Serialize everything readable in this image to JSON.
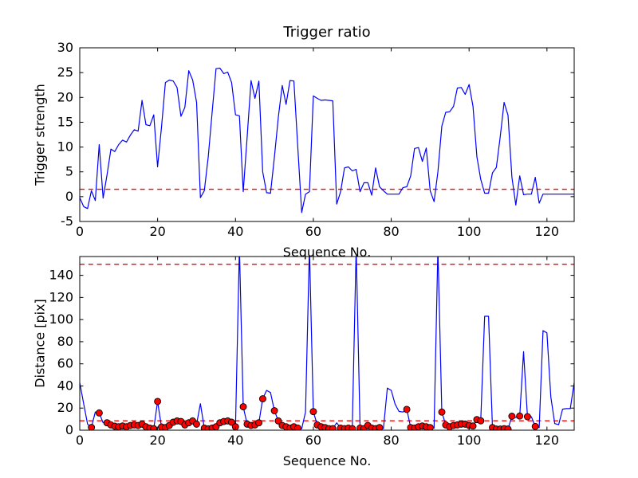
{
  "figure": {
    "background": "#ffffff",
    "axes_color": "#000000",
    "tick_label_color": "#000000"
  },
  "chart_data": [
    {
      "id": "trigger-strength",
      "type": "line",
      "title": "Trigger ratio",
      "xlabel": "Sequence No.",
      "ylabel": "Trigger strength",
      "x_start": 0,
      "x_step": 1,
      "xlim": [
        0,
        127
      ],
      "ylim": [
        -5,
        30
      ],
      "xticks": [
        0,
        20,
        40,
        60,
        80,
        100,
        120
      ],
      "yticks": [
        -5,
        0,
        5,
        10,
        15,
        20,
        25,
        30
      ],
      "grid": false,
      "legend": "none",
      "line_color": "#0000ff",
      "threshold_lines": [
        {
          "y": 1.5,
          "color": "#ff0000",
          "style": "dashed"
        }
      ],
      "values": [
        -0.2,
        -2.0,
        -2.4,
        1.2,
        -0.8,
        10.5,
        -0.3,
        4.4,
        9.6,
        9.1,
        10.5,
        11.4,
        11.0,
        12.4,
        13.5,
        13.2,
        19.4,
        14.5,
        14.3,
        16.5,
        6.0,
        14.0,
        23.0,
        23.5,
        23.3,
        22.0,
        16.2,
        18.0,
        25.4,
        23.5,
        19.0,
        -0.2,
        1.2,
        8.0,
        17.0,
        25.8,
        25.9,
        24.8,
        25.1,
        23.0,
        16.5,
        16.3,
        1.0,
        12.0,
        23.4,
        19.8,
        23.3,
        5.0,
        0.8,
        0.7,
        8.0,
        16.0,
        22.4,
        18.6,
        23.4,
        23.3,
        10.0,
        -3.2,
        0.5,
        1.0,
        20.3,
        19.8,
        19.4,
        19.5,
        19.4,
        19.3,
        -1.5,
        1.0,
        5.8,
        6.0,
        5.2,
        5.5,
        1.0,
        2.8,
        2.8,
        0.3,
        5.8,
        2.0,
        1.2,
        0.5,
        0.5,
        0.5,
        0.5,
        1.8,
        2.0,
        4.2,
        9.7,
        9.9,
        7.1,
        9.8,
        1.2,
        -1.0,
        5.0,
        14.2,
        17.0,
        17.1,
        18.2,
        21.9,
        22.0,
        20.6,
        22.6,
        18.2,
        8.0,
        3.5,
        0.7,
        0.7,
        4.8,
        5.9,
        12.0,
        19.0,
        16.4,
        3.9,
        -1.7,
        4.2,
        0.4,
        0.5,
        0.5,
        3.9,
        -1.3,
        0.5,
        0.5,
        0.5,
        0.5,
        0.5,
        0.5,
        0.5,
        0.5,
        0.5
      ]
    },
    {
      "id": "distance",
      "type": "line",
      "title": "",
      "xlabel": "Sequence No.",
      "ylabel": "Distance [pix]",
      "x_start": 0,
      "x_step": 1,
      "xlim": [
        0,
        127
      ],
      "ylim": [
        0,
        157
      ],
      "xticks": [
        0,
        20,
        40,
        60,
        80,
        100,
        120
      ],
      "yticks": [
        0,
        20,
        40,
        60,
        80,
        100,
        120,
        140
      ],
      "grid": false,
      "legend": "none",
      "line_color": "#0000ff",
      "threshold_lines": [
        {
          "y": 150,
          "color": "#ff0000",
          "style": "dashed"
        },
        {
          "y": 8.5,
          "color": "#ff0000",
          "style": "dashed"
        }
      ],
      "marker": {
        "shape": "circle",
        "face": "#ff0000",
        "edge": "#000000",
        "size": 8
      },
      "marker_indices": [
        3,
        5,
        7,
        8,
        9,
        10,
        11,
        12,
        13,
        14,
        15,
        16,
        17,
        18,
        19,
        20,
        21,
        22,
        23,
        24,
        25,
        26,
        27,
        28,
        29,
        30,
        32,
        33,
        34,
        35,
        36,
        37,
        38,
        39,
        40,
        42,
        43,
        44,
        45,
        46,
        47,
        50,
        51,
        52,
        53,
        54,
        55,
        56,
        60,
        61,
        62,
        63,
        64,
        65,
        67,
        68,
        69,
        70,
        72,
        73,
        74,
        75,
        76,
        77,
        84,
        85,
        86,
        87,
        88,
        89,
        90,
        93,
        94,
        95,
        96,
        97,
        98,
        99,
        100,
        101,
        102,
        103,
        106,
        107,
        108,
        109,
        110,
        111,
        113,
        115,
        117
      ],
      "values": [
        43,
        24,
        5.5,
        2.5,
        16.4,
        15.6,
        6.7,
        6.7,
        4.8,
        3.6,
        3.1,
        3.8,
        3.1,
        4.3,
        4.8,
        4.3,
        5.5,
        3.1,
        1.9,
        1.4,
        26,
        2.9,
        2.4,
        4.3,
        7.2,
        8.4,
        7.9,
        4.8,
        6.7,
        8.4,
        5.5,
        24,
        1.9,
        1.2,
        1.9,
        3.1,
        6.7,
        7.9,
        8.4,
        7.2,
        3.1,
        165,
        21.2,
        5.5,
        4.3,
        4.8,
        6.7,
        28.4,
        36,
        34,
        17.6,
        8.4,
        4.3,
        3.1,
        1.9,
        3.1,
        1.9,
        1.4,
        16.4,
        165,
        16.8,
        4.8,
        3.1,
        2.4,
        1.4,
        1.4,
        6.7,
        1.9,
        1.4,
        1.9,
        1.4,
        165,
        1.9,
        1.4,
        4.3,
        1.9,
        1.4,
        2.4,
        1.4,
        38,
        36,
        23.6,
        17.0,
        16.4,
        18.8,
        2.4,
        1.9,
        3.1,
        3.8,
        3.1,
        2.4,
        1.9,
        165,
        16.4,
        4.8,
        3.1,
        4.3,
        4.8,
        5.5,
        5.5,
        4.3,
        3.8,
        9.6,
        8.5,
        103,
        103,
        2.4,
        1.0,
        1.0,
        1.4,
        1.0,
        12.6,
        11.5,
        12.8,
        71,
        12.2,
        12.2,
        3.4,
        2.3,
        90,
        88,
        30,
        6.0,
        5.0,
        19.0,
        19.5,
        19.5,
        43
      ]
    }
  ]
}
